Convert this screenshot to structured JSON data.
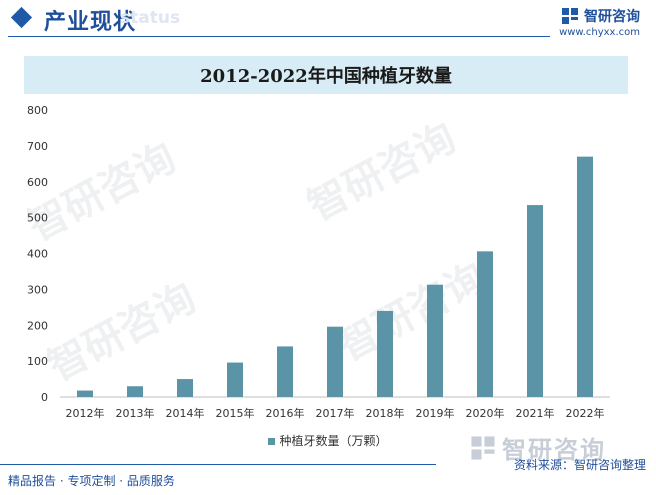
{
  "header": {
    "title": "产业现状",
    "subtitle_en": "status",
    "brand_name": "智研咨询",
    "brand_url": "www.chyxx.com"
  },
  "watermark_text": "智研咨询",
  "footer": {
    "left_text": "精品报告 · 专项定制 · 品质服务",
    "logo_text": "智研咨询",
    "source_text": "资料来源：智研咨询整理"
  },
  "colors": {
    "bar": "#5b93a7",
    "accent": "#1f5aa8",
    "title_bg": "#d8ecf6"
  },
  "chart_data": {
    "type": "bar",
    "title": "2012-2022年中国种植牙数量",
    "categories": [
      "2012年",
      "2013年",
      "2014年",
      "2015年",
      "2016年",
      "2017年",
      "2018年",
      "2019年",
      "2020年",
      "2021年",
      "2022年"
    ],
    "series": [
      {
        "name": "种植牙数量（万颗）",
        "values": [
          18,
          30,
          50,
          96,
          141,
          196,
          240,
          313,
          406,
          535,
          670
        ]
      }
    ],
    "yticks": [
      0,
      100,
      200,
      300,
      400,
      500,
      600,
      700,
      800
    ],
    "ylim": [
      0,
      800
    ],
    "grid": false,
    "legend": "bottom-center"
  }
}
